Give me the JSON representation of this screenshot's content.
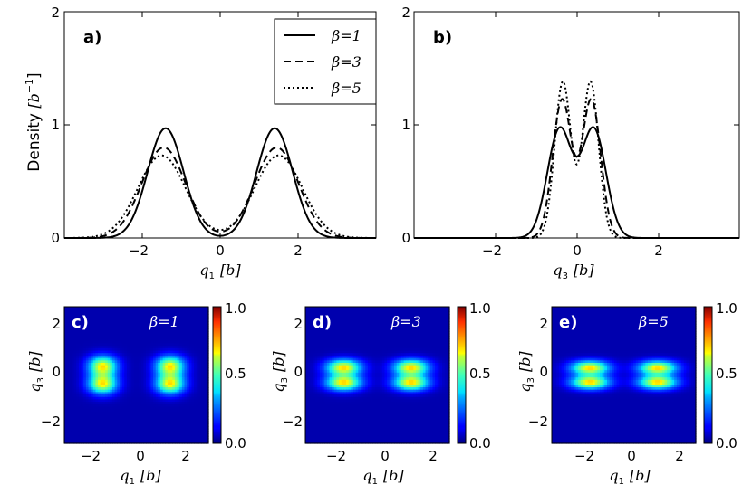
{
  "chart_data": [
    {
      "type": "line",
      "panel": "a)",
      "xlabel_var": "q",
      "xlabel_sub": "1",
      "xlabel_unit": "[b]",
      "ylabel_text": "Density",
      "ylabel_unit_base": "[b",
      "ylabel_unit_exp": "−1",
      "ylabel_unit_close": "]",
      "xlim": [
        -4,
        4
      ],
      "ylim": [
        0,
        2
      ],
      "xticks": [
        -2,
        0,
        2
      ],
      "xtick_labels": [
        "−2",
        "0",
        "2"
      ],
      "yticks": [
        0,
        1,
        2
      ],
      "ytick_labels": [
        "0",
        "1",
        "2"
      ],
      "legend_position": "top-right",
      "series": [
        {
          "name": "β=1",
          "beta": "1",
          "style": "solid",
          "peaks": [
            {
              "center": -1.4,
              "amp": 0.97,
              "sigma": 0.46
            },
            {
              "center": 1.4,
              "amp": 0.97,
              "sigma": 0.46
            }
          ]
        },
        {
          "name": "β=3",
          "beta": "3",
          "style": "dashed",
          "peaks": [
            {
              "center": -1.45,
              "amp": 0.8,
              "sigma": 0.56
            },
            {
              "center": 1.45,
              "amp": 0.8,
              "sigma": 0.56
            }
          ]
        },
        {
          "name": "β=5",
          "beta": "5",
          "style": "dotted",
          "peaks": [
            {
              "center": -1.5,
              "amp": 0.73,
              "sigma": 0.61
            },
            {
              "center": 1.5,
              "amp": 0.73,
              "sigma": 0.61
            }
          ]
        }
      ]
    },
    {
      "type": "line",
      "panel": "b)",
      "xlabel_var": "q",
      "xlabel_sub": "3",
      "xlabel_unit": "[b]",
      "xlim": [
        -4,
        4
      ],
      "ylim": [
        0,
        2
      ],
      "xticks": [
        -2,
        0,
        2
      ],
      "xtick_labels": [
        "−2",
        "0",
        "2"
      ],
      "yticks": [
        0,
        1,
        2
      ],
      "ytick_labels": [
        "0",
        "1",
        "2"
      ],
      "series": [
        {
          "name": "β=1",
          "style": "solid",
          "peaks": [
            {
              "center": -0.42,
              "amp": 0.96,
              "sigma": 0.3
            },
            {
              "center": 0.42,
              "amp": 0.96,
              "sigma": 0.3
            }
          ]
        },
        {
          "name": "β=3",
          "style": "dashed",
          "peaks": [
            {
              "center": -0.36,
              "amp": 1.22,
              "sigma": 0.23
            },
            {
              "center": 0.36,
              "amp": 1.22,
              "sigma": 0.23
            }
          ]
        },
        {
          "name": "β=5",
          "style": "dotted",
          "peaks": [
            {
              "center": -0.34,
              "amp": 1.38,
              "sigma": 0.2
            },
            {
              "center": 0.34,
              "amp": 1.38,
              "sigma": 0.2
            }
          ]
        }
      ]
    },
    {
      "type": "heatmap",
      "panel": "c)",
      "beta_label": "β=1",
      "beta": "1",
      "xlim": [
        -3.2,
        3.2
      ],
      "ylim": [
        -3.2,
        3.2
      ],
      "xticks": [
        -2,
        0,
        2
      ],
      "yticks": [
        -2,
        0,
        2
      ],
      "xtick_labels": [
        "−2",
        "0",
        "2"
      ],
      "ytick_labels": [
        "−2",
        "0",
        "2"
      ],
      "xlabel_var": "q",
      "xlabel_sub": "1",
      "ylabel_var": "q",
      "ylabel_sub": "3",
      "unit": "[b]",
      "colorbar_ticks": [
        "1.0",
        "0.5",
        "0.0"
      ],
      "blobs": [
        {
          "x": -1.5,
          "y": 0.42,
          "sx": 0.45,
          "sy": 0.33
        },
        {
          "x": -1.5,
          "y": -0.42,
          "sx": 0.45,
          "sy": 0.33
        },
        {
          "x": 1.5,
          "y": 0.42,
          "sx": 0.45,
          "sy": 0.33
        },
        {
          "x": 1.5,
          "y": -0.42,
          "sx": 0.45,
          "sy": 0.33
        }
      ]
    },
    {
      "type": "heatmap",
      "panel": "d)",
      "beta_label": "β=3",
      "beta": "3",
      "xlim": [
        -3.2,
        3.2
      ],
      "ylim": [
        -3.2,
        3.2
      ],
      "xticks": [
        -2,
        0,
        2
      ],
      "yticks": [
        -2,
        0,
        2
      ],
      "xtick_labels": [
        "−2",
        "0",
        "2"
      ],
      "ytick_labels": [
        "−2",
        "0",
        "2"
      ],
      "xlabel_var": "q",
      "xlabel_sub": "1",
      "ylabel_var": "q",
      "ylabel_sub": "3",
      "unit": "[b]",
      "colorbar_ticks": [
        "1.0",
        "0.5",
        "0.0"
      ],
      "blobs": [
        {
          "x": -1.5,
          "y": 0.36,
          "sx": 0.55,
          "sy": 0.26
        },
        {
          "x": -1.5,
          "y": -0.36,
          "sx": 0.55,
          "sy": 0.26
        },
        {
          "x": 1.5,
          "y": 0.36,
          "sx": 0.55,
          "sy": 0.26
        },
        {
          "x": 1.5,
          "y": -0.36,
          "sx": 0.55,
          "sy": 0.26
        }
      ]
    },
    {
      "type": "heatmap",
      "panel": "e)",
      "beta_label": "β=5",
      "beta": "5",
      "xlim": [
        -3.2,
        3.2
      ],
      "ylim": [
        -3.2,
        3.2
      ],
      "xticks": [
        -2,
        0,
        2
      ],
      "yticks": [
        -2,
        0,
        2
      ],
      "xtick_labels": [
        "−2",
        "0",
        "2"
      ],
      "ytick_labels": [
        "−2",
        "0",
        "2"
      ],
      "xlabel_var": "q",
      "xlabel_sub": "1",
      "ylabel_var": "q",
      "ylabel_sub": "3",
      "unit": "[b]",
      "colorbar_ticks": [
        "1.0",
        "0.5",
        "0.0"
      ],
      "blobs": [
        {
          "x": -1.5,
          "y": 0.34,
          "sx": 0.6,
          "sy": 0.23
        },
        {
          "x": -1.5,
          "y": -0.34,
          "sx": 0.6,
          "sy": 0.23
        },
        {
          "x": 1.5,
          "y": 0.34,
          "sx": 0.6,
          "sy": 0.23
        },
        {
          "x": 1.5,
          "y": -0.34,
          "sx": 0.6,
          "sy": 0.23
        }
      ]
    }
  ]
}
